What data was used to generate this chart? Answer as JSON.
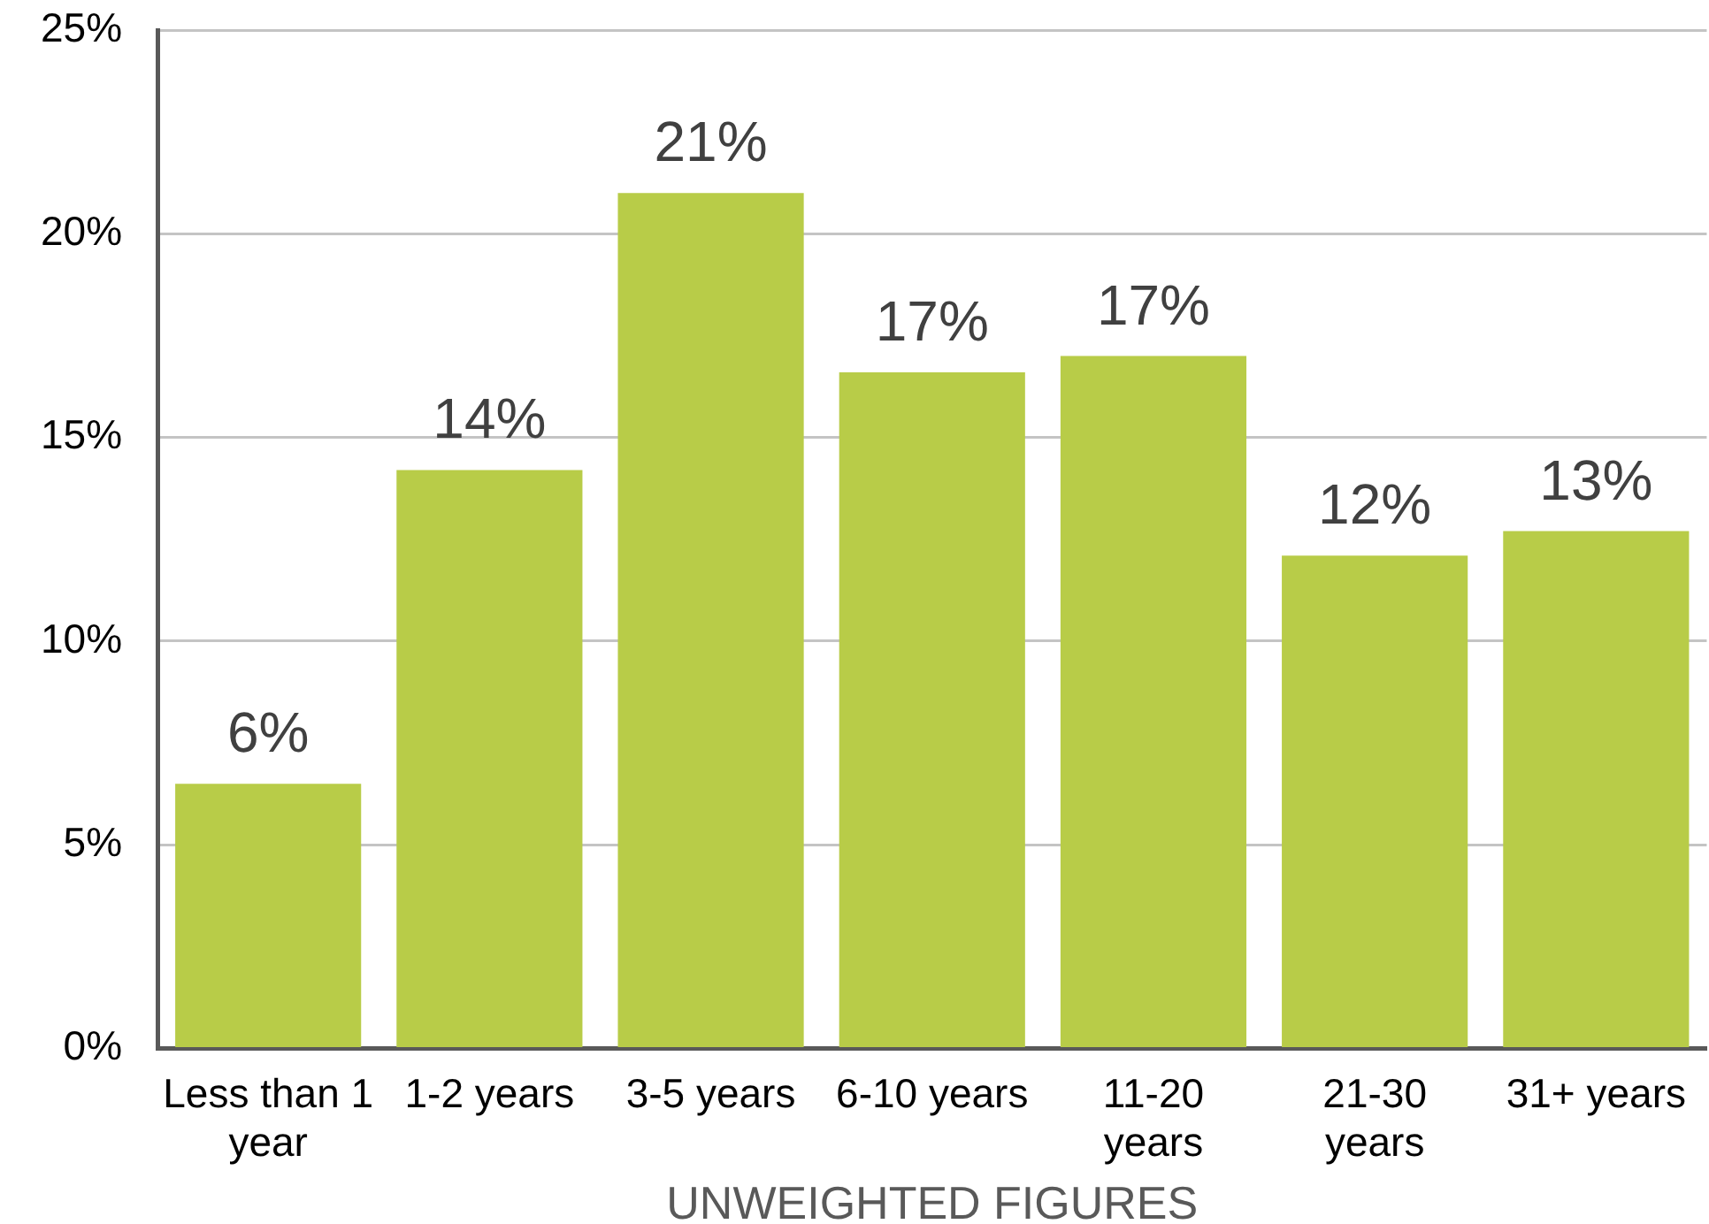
{
  "chart_data": {
    "type": "bar",
    "xlabel": "UNWEIGHTED FIGURES",
    "categories": [
      "Less than 1 year",
      "1-2 years",
      "3-5 years",
      "6-10 years",
      "11-20 years",
      "21-30 years",
      "31+ years"
    ],
    "values": [
      6.5,
      14.2,
      21,
      16.6,
      17,
      12.1,
      12.7
    ],
    "value_labels": [
      "6%",
      "14%",
      "21%",
      "17%",
      "17%",
      "12%",
      "13%"
    ],
    "color": "#b8cc48",
    "ylim": [
      0,
      25
    ],
    "yticks": [
      {
        "value": 0,
        "label": "0%"
      },
      {
        "value": 5,
        "label": "5%"
      },
      {
        "value": 10,
        "label": "10%"
      },
      {
        "value": 15,
        "label": "15%"
      },
      {
        "value": 20,
        "label": "20%"
      },
      {
        "value": 25,
        "label": "25%"
      }
    ],
    "grid": "y",
    "legend": false
  }
}
